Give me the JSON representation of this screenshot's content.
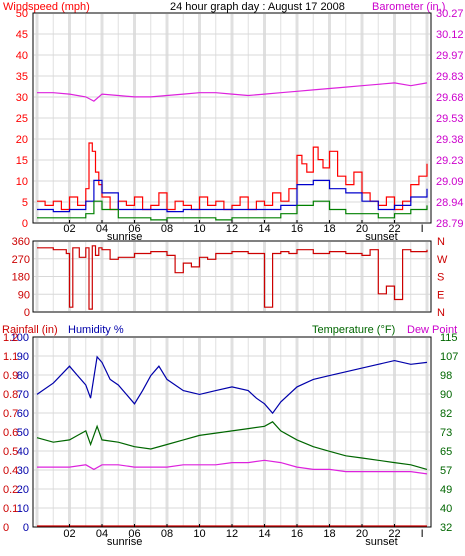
{
  "header": {
    "left_label": "Windspeed (mph)",
    "title": "24 hour graph day : August 17 2008",
    "right_label": "Barometer (in.)"
  },
  "bottom_header": {
    "rainfall_label": "Rainfall (in)",
    "humidity_label": "Humidity %",
    "temperature_label": "Temperature (°F)",
    "dewpoint_label": "Dew Point"
  },
  "colors": {
    "windspeed": "#ff0000",
    "wind_gust": "#ff0000",
    "wind_avg": "#0000cc",
    "wind_low": "#008000",
    "barometer": "#dd22dd",
    "wind_direction": "#cc0000",
    "humidity": "#0000aa",
    "temperature": "#006600",
    "dewpoint": "#dd22dd",
    "rainfall": "#cc0000",
    "grid_shade": "#e0e0e0"
  },
  "chart_data": [
    {
      "type": "line",
      "panel": "wind-barometer",
      "xlabel": "",
      "x_ticks": [
        "02",
        "04",
        "06",
        "08",
        "10",
        "12",
        "14",
        "16",
        "18",
        "20",
        "22"
      ],
      "sunrise_label": "sunrise",
      "sunset_label": "sunset",
      "left_axis": {
        "ticks": [
          "50",
          "45",
          "40",
          "35",
          "30",
          "25",
          "20",
          "15",
          "10",
          "5",
          "0"
        ],
        "ylim": [
          0,
          50
        ]
      },
      "right_axis": {
        "ticks": [
          "30.27",
          "30.12",
          "29.97",
          "29.83",
          "29.68",
          "29.53",
          "29.38",
          "29.23",
          "29.09",
          "28.94",
          "28.79"
        ],
        "ylim": [
          28.79,
          30.27
        ]
      },
      "series": [
        {
          "name": "Windspeed (mph)",
          "axis": "left",
          "color_key": "windspeed",
          "x": [
            0,
            0.5,
            1,
            1.5,
            2,
            2.5,
            3,
            3.2,
            3.4,
            3.6,
            3.8,
            4,
            4.5,
            5,
            5.5,
            6,
            6.5,
            7,
            7.5,
            8,
            8.5,
            9,
            9.5,
            10,
            10.5,
            11,
            11.5,
            12,
            12.5,
            13,
            13.5,
            14,
            14.5,
            15,
            15.5,
            16,
            16.3,
            16.6,
            17,
            17.3,
            17.6,
            18,
            18.5,
            19,
            19.5,
            20,
            20.5,
            21,
            21.5,
            22,
            22.5,
            23,
            23.5,
            24
          ],
          "y": [
            5,
            4,
            5,
            3,
            6,
            4,
            8,
            19,
            17,
            12,
            9,
            6,
            3,
            5,
            4,
            6,
            3,
            4,
            7,
            3,
            5,
            4,
            3,
            6,
            4,
            5,
            3,
            4,
            6,
            3,
            5,
            4,
            7,
            5,
            8,
            16,
            14,
            12,
            18,
            15,
            13,
            17,
            11,
            9,
            12,
            7,
            5,
            4,
            6,
            3,
            5,
            9,
            11,
            14
          ]
        },
        {
          "name": "Wind avg",
          "axis": "left",
          "color_key": "wind_avg",
          "x": [
            0,
            1,
            2,
            3,
            3.5,
            4,
            5,
            6,
            7,
            8,
            9,
            10,
            11,
            12,
            13,
            14,
            15,
            16,
            17,
            18,
            19,
            20,
            21,
            22,
            23,
            24
          ],
          "y": [
            3,
            2.5,
            3,
            5,
            10,
            7,
            3,
            3,
            3,
            2.5,
            3,
            3,
            3,
            3,
            3,
            3,
            4,
            9,
            10,
            8,
            7,
            5,
            3,
            4,
            6,
            8
          ]
        },
        {
          "name": "Wind low",
          "axis": "left",
          "color_key": "wind_low",
          "x": [
            0,
            1,
            2,
            3,
            3.5,
            4,
            5,
            6,
            7,
            8,
            9,
            10,
            11,
            12,
            13,
            14,
            15,
            16,
            17,
            18,
            19,
            20,
            21,
            22,
            23,
            24
          ],
          "y": [
            1,
            1,
            1,
            2,
            5,
            3,
            1,
            1,
            0.5,
            1,
            1,
            1,
            0.5,
            1,
            1,
            1,
            2,
            4,
            5,
            3,
            2,
            2,
            1,
            2,
            3,
            4
          ]
        },
        {
          "name": "Barometer (in.)",
          "axis": "right",
          "color_key": "barometer",
          "x": [
            0,
            1,
            2,
            3,
            3.5,
            4,
            5,
            6,
            7,
            8,
            9,
            10,
            11,
            12,
            13,
            14,
            15,
            16,
            17,
            18,
            19,
            20,
            21,
            22,
            23,
            24
          ],
          "y": [
            29.71,
            29.71,
            29.7,
            29.68,
            29.65,
            29.7,
            29.69,
            29.68,
            29.68,
            29.69,
            29.7,
            29.71,
            29.71,
            29.7,
            29.69,
            29.7,
            29.71,
            29.72,
            29.73,
            29.74,
            29.75,
            29.76,
            29.77,
            29.78,
            29.76,
            29.78
          ]
        }
      ]
    },
    {
      "type": "line",
      "panel": "wind-direction",
      "left_axis": {
        "ticks": [
          "360",
          "270",
          "180",
          "90",
          "0"
        ],
        "ylim": [
          0,
          360
        ]
      },
      "right_axis": {
        "ticks": [
          "N",
          "W",
          "S",
          "E",
          "N"
        ]
      },
      "series": [
        {
          "name": "Wind direction",
          "axis": "left",
          "color_key": "wind_direction",
          "x": [
            0,
            1,
            1.8,
            2,
            2.2,
            2.6,
            3,
            3.2,
            3.4,
            3.6,
            3.8,
            4,
            4.5,
            5,
            6,
            7,
            8,
            8.5,
            9,
            9.5,
            10,
            10.5,
            11,
            12,
            13,
            14,
            14.5,
            15,
            15.5,
            16,
            17,
            18,
            19,
            20,
            20.5,
            21,
            21.5,
            22,
            22.5,
            23,
            24
          ],
          "y": [
            330,
            320,
            300,
            20,
            330,
            280,
            330,
            10,
            340,
            290,
            330,
            320,
            270,
            280,
            300,
            310,
            290,
            200,
            250,
            230,
            280,
            270,
            300,
            310,
            300,
            20,
            300,
            310,
            300,
            320,
            300,
            310,
            300,
            290,
            320,
            90,
            130,
            60,
            320,
            310,
            320
          ]
        }
      ]
    },
    {
      "type": "line",
      "panel": "humidity-temperature",
      "x_ticks": [
        "02",
        "04",
        "06",
        "08",
        "10",
        "12",
        "14",
        "16",
        "18",
        "20",
        "22"
      ],
      "sunrise_label": "sunrise",
      "sunset_label": "sunset",
      "left_axis_humidity": {
        "ticks": [
          "100",
          "90",
          "80",
          "70",
          "60",
          "50",
          "40",
          "30",
          "20",
          "10",
          "0"
        ],
        "ylim": [
          0,
          100
        ]
      },
      "left_axis_rain": {
        "ticks": [
          "1.2",
          "1.1",
          "0.9",
          "0.8",
          "0.7",
          "0.6",
          "0.5",
          "0.4",
          "0.2",
          "0.1",
          "0"
        ]
      },
      "right_axis": {
        "ticks": [
          "115",
          "107",
          "98",
          "90",
          "82",
          "73",
          "65",
          "57",
          "49",
          "40",
          "32"
        ],
        "ylim": [
          32,
          115
        ]
      },
      "series": [
        {
          "name": "Humidity %",
          "axis": "left",
          "color_key": "humidity",
          "x": [
            0,
            1,
            2,
            2.5,
            3,
            3.3,
            3.7,
            4,
            4.5,
            5,
            5.5,
            6,
            6.5,
            7,
            7.5,
            8,
            9,
            10,
            11,
            12,
            13,
            13.5,
            14,
            14.5,
            15,
            16,
            17,
            18,
            19,
            20,
            21,
            22,
            23,
            24
          ],
          "y": [
            70,
            76,
            85,
            80,
            75,
            68,
            90,
            87,
            78,
            75,
            70,
            65,
            72,
            80,
            85,
            78,
            72,
            70,
            72,
            74,
            72,
            68,
            65,
            60,
            66,
            74,
            78,
            80,
            82,
            84,
            86,
            88,
            86,
            87
          ]
        },
        {
          "name": "Temperature (°F)",
          "axis": "right",
          "color_key": "temperature",
          "x": [
            0,
            1,
            2,
            2.5,
            3,
            3.3,
            3.7,
            4,
            5,
            6,
            7,
            8,
            9,
            10,
            11,
            12,
            13,
            14,
            14.5,
            15,
            16,
            17,
            18,
            19,
            20,
            21,
            22,
            23,
            24
          ],
          "y": [
            71,
            69,
            70,
            72,
            74,
            68,
            76,
            70,
            69,
            67,
            66,
            68,
            70,
            72,
            73,
            74,
            75,
            76,
            78,
            74,
            70,
            67,
            65,
            63,
            62,
            61,
            60,
            59,
            57
          ]
        },
        {
          "name": "Dew Point",
          "axis": "right",
          "color_key": "dewpoint",
          "x": [
            0,
            1,
            2,
            3,
            3.5,
            4,
            5,
            6,
            7,
            8,
            9,
            10,
            11,
            12,
            13,
            14,
            15,
            16,
            17,
            18,
            19,
            20,
            21,
            22,
            23,
            24
          ],
          "y": [
            58,
            58,
            58,
            59,
            57,
            59,
            59,
            58,
            58,
            58,
            59,
            59,
            59,
            60,
            60,
            61,
            60,
            58,
            57,
            57,
            56,
            56,
            56,
            56,
            56,
            55
          ]
        },
        {
          "name": "Rainfall (in)",
          "axis": "rain",
          "color_key": "rainfall",
          "x": [
            0,
            24
          ],
          "y": [
            0,
            0
          ]
        }
      ]
    }
  ]
}
